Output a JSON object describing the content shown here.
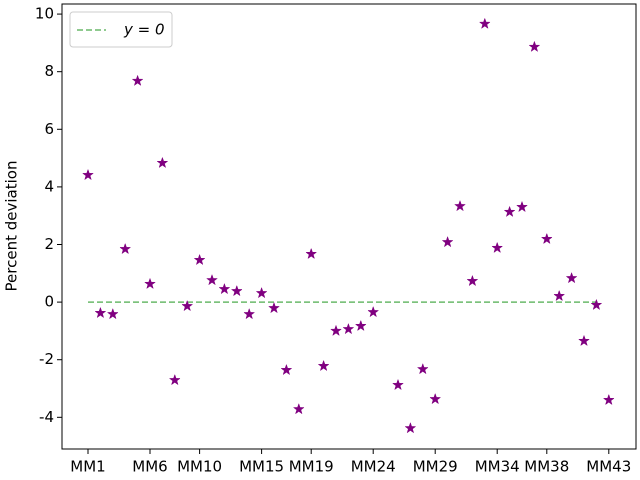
{
  "chart_data": {
    "type": "scatter",
    "y_label": "Percent deviation",
    "categories": [
      "MM1",
      null,
      null,
      null,
      null,
      "MM6",
      null,
      null,
      null,
      "MM10",
      null,
      null,
      null,
      null,
      "MM15",
      null,
      null,
      null,
      "MM19",
      null,
      null,
      null,
      null,
      "MM24",
      null,
      null,
      null,
      null,
      "MM29",
      null,
      null,
      null,
      null,
      "MM34",
      null,
      null,
      null,
      "MM38",
      null,
      null,
      null,
      null,
      "MM43"
    ],
    "series": [
      {
        "color": "#800080",
        "marker": "star",
        "values": [
          4.41,
          -0.38,
          -0.42,
          1.84,
          7.68,
          0.63,
          4.83,
          -2.71,
          -0.14,
          1.46,
          0.76,
          0.45,
          0.38,
          -0.42,
          0.31,
          -0.21,
          -2.36,
          -3.72,
          1.67,
          -2.22,
          -1.0,
          -0.94,
          -0.83,
          -0.35,
          null,
          -2.88,
          -4.38,
          -2.33,
          -3.37,
          2.08,
          3.33,
          0.73,
          9.66,
          1.88,
          3.13,
          3.3,
          8.86,
          2.19,
          0.21,
          0.83,
          -1.35,
          -0.1,
          -3.4
        ]
      }
    ],
    "reference_line": {
      "name": "y = 0",
      "value": 0,
      "color": "#6ab96a",
      "dashed": true
    },
    "ylim": [
      -5.1,
      10.35
    ],
    "yticks": [
      -4,
      -2,
      0,
      2,
      4,
      6,
      8,
      10
    ],
    "legend": "upper left"
  }
}
